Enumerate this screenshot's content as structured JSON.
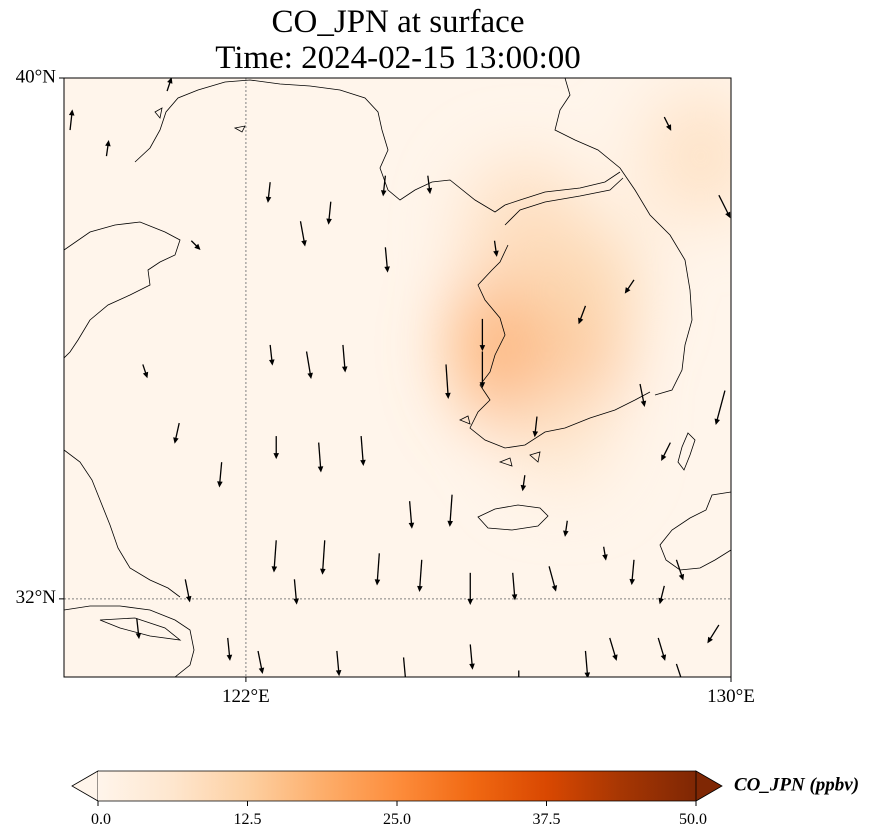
{
  "title": {
    "line1": "CO_JPN at surface",
    "line2": "Time: 2024-02-15 13:00:00"
  },
  "map": {
    "lon_range": [
      119,
      130
    ],
    "lat_range": [
      30.8,
      40
    ],
    "lat_ticks": [
      {
        "value": 40,
        "label": "40°N"
      },
      {
        "value": 32,
        "label": "32°N"
      }
    ],
    "lon_ticks": [
      {
        "value": 122,
        "label": "122°E"
      },
      {
        "value": 130,
        "label": "130°E"
      }
    ],
    "gridlines": {
      "lon": 122,
      "lat": 32
    },
    "plume_centers": [
      {
        "lon": 126.8,
        "lat": 35.9,
        "value": 20
      },
      {
        "lon": 127.5,
        "lat": 36.8,
        "value": 10
      },
      {
        "lon": 126.6,
        "lat": 37.7,
        "value": 9
      },
      {
        "lon": 129.5,
        "lat": 38.8,
        "value": 8
      },
      {
        "lon": 127.2,
        "lat": 34.6,
        "value": 6
      }
    ]
  },
  "colorbar": {
    "label": "CO_JPN (ppbv)",
    "min": 0.0,
    "max": 50.0,
    "ticks": [
      "0.0",
      "12.5",
      "25.0",
      "37.5",
      "50.0"
    ],
    "extend": "both",
    "colors": [
      "#fff5eb",
      "#fee6ce",
      "#fdd0a2",
      "#fdae6b",
      "#fd8d3c",
      "#f16913",
      "#d94801",
      "#a63603",
      "#7f2704"
    ]
  },
  "wind_vectors": [
    {
      "lon": 119.1,
      "lat": 39.2,
      "u": 0.1,
      "v": 0.9
    },
    {
      "lon": 119.7,
      "lat": 38.8,
      "u": 0.1,
      "v": 0.7
    },
    {
      "lon": 120.7,
      "lat": 39.8,
      "u": 0.2,
      "v": 0.6
    },
    {
      "lon": 122.4,
      "lat": 38.4,
      "u": -0.1,
      "v": -0.9
    },
    {
      "lon": 123.4,
      "lat": 38.1,
      "u": -0.1,
      "v": -1.0
    },
    {
      "lon": 124.3,
      "lat": 38.5,
      "u": -0.1,
      "v": -0.9
    },
    {
      "lon": 125.0,
      "lat": 38.5,
      "u": 0.1,
      "v": -0.8
    },
    {
      "lon": 126.1,
      "lat": 37.5,
      "u": 0.1,
      "v": -0.7
    },
    {
      "lon": 128.9,
      "lat": 39.4,
      "u": 0.3,
      "v": -0.6
    },
    {
      "lon": 129.8,
      "lat": 38.2,
      "u": 0.5,
      "v": -1.0
    },
    {
      "lon": 121.1,
      "lat": 37.5,
      "u": 0.4,
      "v": -0.4
    },
    {
      "lon": 122.9,
      "lat": 37.8,
      "u": 0.2,
      "v": -1.1
    },
    {
      "lon": 124.3,
      "lat": 37.4,
      "u": 0.1,
      "v": -1.1
    },
    {
      "lon": 122.4,
      "lat": 35.9,
      "u": 0.1,
      "v": -0.9
    },
    {
      "lon": 123.0,
      "lat": 35.8,
      "u": 0.2,
      "v": -1.2
    },
    {
      "lon": 123.6,
      "lat": 35.9,
      "u": 0.1,
      "v": -1.2
    },
    {
      "lon": 125.3,
      "lat": 35.6,
      "u": 0.1,
      "v": -1.5
    },
    {
      "lon": 125.9,
      "lat": 36.3,
      "u": 0.0,
      "v": -1.4
    },
    {
      "lon": 125.9,
      "lat": 35.8,
      "u": 0.0,
      "v": -1.6
    },
    {
      "lon": 126.8,
      "lat": 34.8,
      "u": -0.1,
      "v": -0.9
    },
    {
      "lon": 126.6,
      "lat": 33.9,
      "u": -0.1,
      "v": -0.7
    },
    {
      "lon": 127.6,
      "lat": 36.5,
      "u": -0.3,
      "v": -0.8
    },
    {
      "lon": 128.4,
      "lat": 36.9,
      "u": -0.4,
      "v": -0.6
    },
    {
      "lon": 128.5,
      "lat": 35.3,
      "u": 0.2,
      "v": -1.0
    },
    {
      "lon": 129.0,
      "lat": 34.4,
      "u": -0.4,
      "v": -0.8
    },
    {
      "lon": 129.9,
      "lat": 35.2,
      "u": -0.4,
      "v": -1.5
    },
    {
      "lon": 120.3,
      "lat": 35.6,
      "u": 0.2,
      "v": -0.6
    },
    {
      "lon": 120.9,
      "lat": 34.7,
      "u": -0.2,
      "v": -0.9
    },
    {
      "lon": 121.6,
      "lat": 34.1,
      "u": -0.1,
      "v": -1.1
    },
    {
      "lon": 122.5,
      "lat": 34.5,
      "u": 0.0,
      "v": -1.0
    },
    {
      "lon": 123.2,
      "lat": 34.4,
      "u": 0.1,
      "v": -1.3
    },
    {
      "lon": 123.9,
      "lat": 34.5,
      "u": 0.1,
      "v": -1.3
    },
    {
      "lon": 124.7,
      "lat": 33.5,
      "u": 0.1,
      "v": -1.2
    },
    {
      "lon": 125.4,
      "lat": 33.6,
      "u": -0.1,
      "v": -1.4
    },
    {
      "lon": 127.3,
      "lat": 33.2,
      "u": -0.1,
      "v": -0.7
    },
    {
      "lon": 127.9,
      "lat": 32.8,
      "u": 0.1,
      "v": -0.6
    },
    {
      "lon": 121.0,
      "lat": 32.3,
      "u": 0.2,
      "v": -1.0
    },
    {
      "lon": 122.5,
      "lat": 32.9,
      "u": -0.1,
      "v": -1.4
    },
    {
      "lon": 122.8,
      "lat": 32.3,
      "u": 0.1,
      "v": -1.1
    },
    {
      "lon": 123.3,
      "lat": 32.9,
      "u": -0.1,
      "v": -1.5
    },
    {
      "lon": 124.2,
      "lat": 32.7,
      "u": -0.1,
      "v": -1.4
    },
    {
      "lon": 124.9,
      "lat": 32.6,
      "u": -0.1,
      "v": -1.4
    },
    {
      "lon": 125.7,
      "lat": 32.4,
      "u": 0.0,
      "v": -1.4
    },
    {
      "lon": 126.4,
      "lat": 32.4,
      "u": 0.1,
      "v": -1.2
    },
    {
      "lon": 127.0,
      "lat": 32.5,
      "u": 0.3,
      "v": -1.1
    },
    {
      "lon": 128.4,
      "lat": 32.6,
      "u": -0.1,
      "v": -1.1
    },
    {
      "lon": 129.1,
      "lat": 32.6,
      "u": 0.3,
      "v": -0.9
    },
    {
      "lon": 128.9,
      "lat": 32.2,
      "u": -0.2,
      "v": -0.8
    },
    {
      "lon": 120.2,
      "lat": 31.7,
      "u": 0.1,
      "v": -0.9
    },
    {
      "lon": 121.7,
      "lat": 31.4,
      "u": 0.1,
      "v": -1.0
    },
    {
      "lon": 122.2,
      "lat": 31.2,
      "u": 0.2,
      "v": -1.0
    },
    {
      "lon": 123.5,
      "lat": 31.2,
      "u": 0.1,
      "v": -1.1
    },
    {
      "lon": 124.6,
      "lat": 31.1,
      "u": 0.1,
      "v": -1.1
    },
    {
      "lon": 125.7,
      "lat": 31.3,
      "u": 0.1,
      "v": -1.1
    },
    {
      "lon": 126.5,
      "lat": 30.9,
      "u": 0.0,
      "v": -1.0
    },
    {
      "lon": 127.6,
      "lat": 31.2,
      "u": 0.1,
      "v": -1.2
    },
    {
      "lon": 128.0,
      "lat": 31.4,
      "u": 0.3,
      "v": -1.0
    },
    {
      "lon": 128.8,
      "lat": 31.4,
      "u": 0.3,
      "v": -1.0
    },
    {
      "lon": 129.8,
      "lat": 31.6,
      "u": -0.5,
      "v": -0.8
    },
    {
      "lon": 129.1,
      "lat": 31.0,
      "u": 0.3,
      "v": -0.9
    }
  ]
}
